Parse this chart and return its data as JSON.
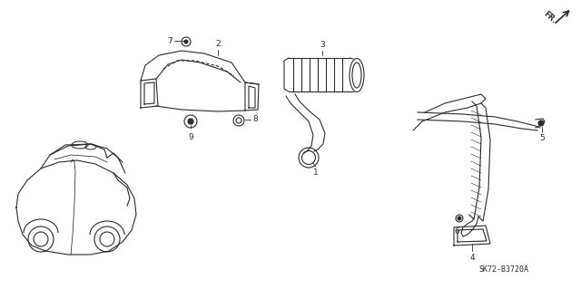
{
  "bg_color": "#ffffff",
  "line_color": "#2a2a2a",
  "part_number_text": "SK72-B3720A",
  "fr_label": "FR.",
  "figsize": [
    6.4,
    3.19
  ],
  "dpi": 100
}
